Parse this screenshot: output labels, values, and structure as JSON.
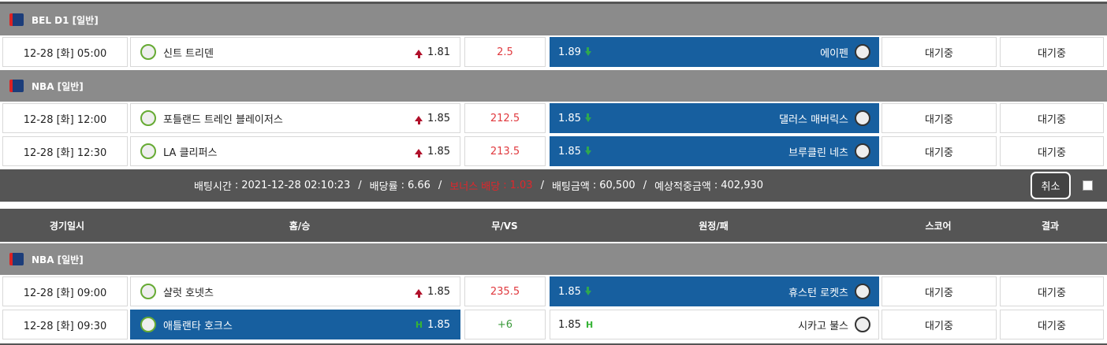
{
  "slip": {
    "sections": [
      {
        "league": "BEL D1 [일반]",
        "games": [
          {
            "time": "12-28 [화] 05:00",
            "home": "신트 트리덴",
            "home_odds": "1.81",
            "home_trend": "up",
            "line": "2.5",
            "line_color": "#e0393e",
            "away_odds": "1.89",
            "away_trend": "down",
            "away": "에이펜",
            "score": "대기중",
            "result": "대기중",
            "selected": "away"
          }
        ]
      },
      {
        "league": "NBA [일반]",
        "games": [
          {
            "time": "12-28 [화] 12:00",
            "home": "포틀랜드 트레인 블레이저스",
            "home_odds": "1.85",
            "home_trend": "up",
            "line": "212.5",
            "line_color": "#e0393e",
            "away_odds": "1.85",
            "away_trend": "down",
            "away": "댈러스 매버릭스",
            "score": "대기중",
            "result": "대기중",
            "selected": "away"
          },
          {
            "time": "12-28 [화] 12:30",
            "home": "LA 클리퍼스",
            "home_odds": "1.85",
            "home_trend": "up",
            "line": "213.5",
            "line_color": "#e0393e",
            "away_odds": "1.85",
            "away_trend": "down",
            "away": "브루클린 네츠",
            "score": "대기중",
            "result": "대기중",
            "selected": "away"
          }
        ]
      }
    ],
    "summary": {
      "label_separator": ":",
      "item_separator": "/",
      "items": [
        {
          "label": "배팅시간",
          "value": "2021-12-28 02:10:23"
        },
        {
          "label": "배당률",
          "value": "6.66"
        },
        {
          "label": "보너스 배당",
          "value": "1.03",
          "highlight": true
        },
        {
          "label": "배팅금액",
          "value": "60,500"
        },
        {
          "label": "예상적중금액",
          "value": "402,930"
        }
      ],
      "cancel": "취소"
    }
  },
  "table": {
    "header": [
      "경기일시",
      "홈/승",
      "무/VS",
      "원정/패",
      "스코어",
      "결과"
    ],
    "sections": [
      {
        "league": "NBA [일반]",
        "games": [
          {
            "time": "12-28 [화] 09:00",
            "home": "샬럿 호넷츠",
            "home_odds": "1.85",
            "home_trend": "up",
            "line": "235.5",
            "line_color": "#e0393e",
            "away_odds": "1.85",
            "away_trend": "down",
            "away": "휴스턴 로켓츠",
            "score": "대기중",
            "result": "대기중",
            "selected": "away"
          },
          {
            "time": "12-28 [화] 09:30",
            "home": "애틀랜타 호크스",
            "home_odds": "1.85",
            "home_flag": "H",
            "line": "+6",
            "line_color": "#3a9a3a",
            "away_odds": "1.85",
            "away_flag": "H",
            "away": "시카고 불스",
            "score": "대기중",
            "result": "대기중",
            "selected": "home"
          }
        ]
      }
    ]
  }
}
